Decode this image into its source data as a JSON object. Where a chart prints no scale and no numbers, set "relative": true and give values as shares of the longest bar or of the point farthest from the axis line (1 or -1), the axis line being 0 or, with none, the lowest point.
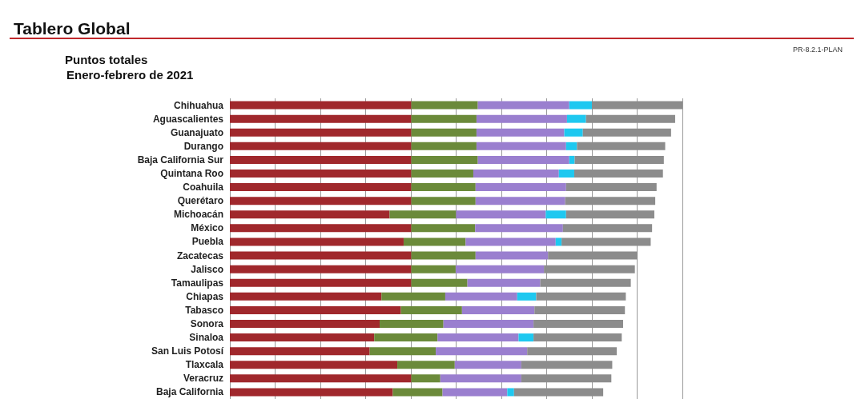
{
  "chart_data": {
    "type": "bar",
    "title": "Tablero Global",
    "subtitle": "Puntos totales",
    "annotations": [
      "Enero-febrero de 2021",
      "PR-8.2.1-PLAN"
    ],
    "orientation": "horizontal",
    "stacked": true,
    "relative": true,
    "grid": "x",
    "categories": [
      "Chihuahua",
      "Aguascalientes",
      "Guanajuato",
      "Durango",
      "Baja California Sur",
      "Quintana Roo",
      "Coahuila",
      "Querétaro",
      "Michoacán",
      "México",
      "Puebla",
      "Zacatecas",
      "Jalisco",
      "Tamaulipas",
      "Chiapas",
      "Tabasco",
      "Sonora",
      "Sinaloa",
      "San Luis Potosí",
      "Tlaxcala",
      "Veracruz",
      "Baja California"
    ],
    "series": [
      {
        "color": "#a0282c",
        "values": [
          0.401,
          0.401,
          0.401,
          0.401,
          0.401,
          0.401,
          0.401,
          0.401,
          0.353,
          0.401,
          0.384,
          0.401,
          0.401,
          0.401,
          0.335,
          0.378,
          0.331,
          0.319,
          0.309,
          0.37,
          0.401,
          0.36
        ]
      },
      {
        "color": "#6b8a3a",
        "values": [
          0.147,
          0.144,
          0.144,
          0.144,
          0.147,
          0.137,
          0.142,
          0.142,
          0.147,
          0.141,
          0.137,
          0.142,
          0.098,
          0.124,
          0.141,
          0.135,
          0.141,
          0.14,
          0.146,
          0.127,
          0.064,
          0.11
        ]
      },
      {
        "color": "#9a7fcf",
        "values": [
          0.202,
          0.2,
          0.194,
          0.198,
          0.202,
          0.189,
          0.2,
          0.198,
          0.198,
          0.194,
          0.199,
          0.16,
          0.195,
          0.161,
          0.159,
          0.16,
          0.199,
          0.179,
          0.202,
          0.147,
          0.179,
          0.143
        ]
      },
      {
        "color": "#1ec8f0",
        "values": [
          0.05,
          0.042,
          0.041,
          0.024,
          0.012,
          0.034,
          null,
          null,
          0.045,
          null,
          0.013,
          null,
          null,
          null,
          0.042,
          null,
          null,
          0.033,
          null,
          null,
          null,
          0.015
        ]
      },
      {
        "color": "#8c8c8c",
        "values": [
          0.2,
          0.197,
          0.195,
          0.195,
          0.197,
          0.196,
          0.2,
          0.199,
          0.195,
          0.197,
          0.197,
          0.198,
          0.201,
          0.2,
          0.198,
          0.2,
          0.198,
          0.195,
          0.198,
          0.201,
          0.199,
          0.197
        ]
      }
    ]
  }
}
